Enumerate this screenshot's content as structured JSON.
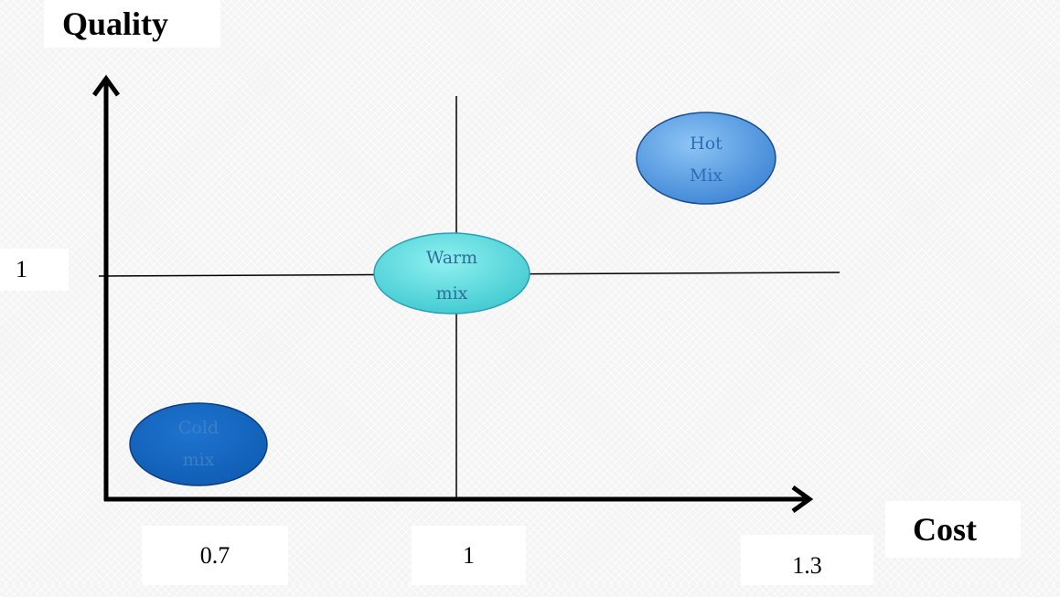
{
  "axes": {
    "y_label": "Quality",
    "x_label": "Cost",
    "y_ticks": [
      "1"
    ],
    "x_ticks": [
      "0.7",
      "1",
      "1.3"
    ]
  },
  "bubbles": [
    {
      "id": "cold",
      "line1": "Cold",
      "line2": "mix",
      "fill": "#1565c0",
      "text_color": "#3d7fc4"
    },
    {
      "id": "warm",
      "line1": "Warm",
      "line2": "mix",
      "fill": "#4dd4d8",
      "text_color": "#2e6f9a"
    },
    {
      "id": "hot",
      "line1": "Hot",
      "line2": "Mix",
      "fill": "#4a8fd8",
      "text_color": "#2d6db8"
    }
  ]
}
